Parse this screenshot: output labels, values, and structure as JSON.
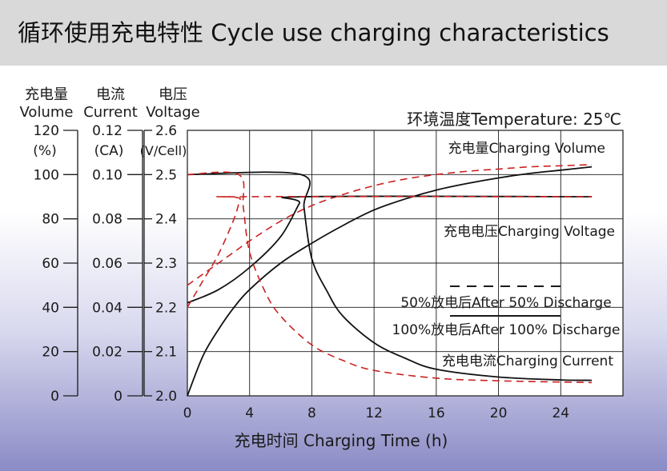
{
  "title": "循环使用充电特性 Cycle use charging characteristics",
  "chart_data": {
    "type": "line",
    "title": "循环使用充电特性 Cycle use charging characteristics",
    "temperature_label": "环境温度Temperature: 25℃",
    "xlabel": "充电时间 Charging Time (h)",
    "xlim": [
      0,
      28
    ],
    "x_ticks": [
      0,
      4,
      8,
      12,
      16,
      20,
      24
    ],
    "y_axes": [
      {
        "label_cn": "充电量",
        "label_en": "Volume",
        "unit": "(%)",
        "ticks": [
          "0",
          "20",
          "40",
          "60",
          "80",
          "100",
          "120"
        ]
      },
      {
        "label_cn": "电流",
        "label_en": "Current",
        "unit": "(CA)",
        "ticks": [
          "0",
          "0.02",
          "0.04",
          "0.06",
          "0.08",
          "0.10",
          "0.12"
        ]
      },
      {
        "label_cn": "电压",
        "label_en": "Voltage",
        "unit": "(V/Cell)",
        "ticks": [
          "2.0",
          "2.1",
          "2.2",
          "2.3",
          "2.4",
          "2.5",
          "2.6"
        ]
      }
    ],
    "ylim_volume": [
      0,
      120
    ],
    "curve_labels": {
      "volume": "充电量Charging Volume",
      "voltage": "充电电压Charging Voltage",
      "current": "充电电流Charging Current"
    },
    "legend": [
      {
        "label": "50%放电后After 50% Discharge",
        "style": "dashed",
        "color": "#cc2222"
      },
      {
        "label": "100%放电后After 100% Discharge",
        "style": "solid",
        "color": "#111111"
      }
    ],
    "series": [
      {
        "name": "Charging Volume (100% discharge)",
        "style": "solid",
        "points": [
          [
            0,
            0
          ],
          [
            1,
            18
          ],
          [
            2,
            30
          ],
          [
            3,
            40
          ],
          [
            4,
            48
          ],
          [
            6,
            60
          ],
          [
            8,
            69
          ],
          [
            10,
            77
          ],
          [
            12,
            84
          ],
          [
            14,
            89
          ],
          [
            16,
            93
          ],
          [
            18,
            96
          ],
          [
            20,
            98.5
          ],
          [
            22,
            100.5
          ],
          [
            24,
            102
          ],
          [
            26,
            103.5
          ]
        ]
      },
      {
        "name": "Charging Volume (50% discharge)",
        "style": "dashed",
        "points": [
          [
            0,
            50
          ],
          [
            1,
            55
          ],
          [
            2,
            60
          ],
          [
            3,
            65
          ],
          [
            4,
            70
          ],
          [
            6,
            79
          ],
          [
            8,
            86
          ],
          [
            10,
            91
          ],
          [
            12,
            95
          ],
          [
            14,
            98
          ],
          [
            16,
            100
          ],
          [
            18,
            101.5
          ],
          [
            20,
            102.5
          ],
          [
            22,
            103.5
          ],
          [
            24,
            104
          ],
          [
            26,
            104.5
          ]
        ]
      },
      {
        "name": "Charging Voltage (100% discharge)",
        "style": "solid",
        "points": [
          [
            0,
            2.21
          ],
          [
            2,
            2.24
          ],
          [
            4,
            2.29
          ],
          [
            6,
            2.36
          ],
          [
            7.2,
            2.435
          ],
          [
            7.5,
            2.45
          ],
          [
            26,
            2.45
          ]
        ]
      },
      {
        "name": "Charging Voltage (50% discharge)",
        "style": "dashed",
        "points": [
          [
            0,
            2.2
          ],
          [
            1,
            2.26
          ],
          [
            2,
            2.32
          ],
          [
            3,
            2.4
          ],
          [
            3.4,
            2.445
          ],
          [
            3.6,
            2.45
          ],
          [
            26,
            2.45
          ]
        ]
      },
      {
        "name": "Charging Current (100% discharge)",
        "style": "solid",
        "points": [
          [
            0,
            0.1
          ],
          [
            7.3,
            0.1
          ],
          [
            7.5,
            0.085
          ],
          [
            8,
            0.062
          ],
          [
            9,
            0.047
          ],
          [
            10,
            0.036
          ],
          [
            12,
            0.024
          ],
          [
            14,
            0.017
          ],
          [
            16,
            0.012
          ],
          [
            20,
            0.0085
          ],
          [
            24,
            0.0072
          ],
          [
            26,
            0.007
          ]
        ]
      },
      {
        "name": "Charging Current (50% discharge)",
        "style": "dashed",
        "points": [
          [
            0,
            0.1
          ],
          [
            3.3,
            0.1
          ],
          [
            3.6,
            0.085
          ],
          [
            4,
            0.065
          ],
          [
            5,
            0.047
          ],
          [
            6,
            0.036
          ],
          [
            8,
            0.023
          ],
          [
            10,
            0.016
          ],
          [
            12,
            0.0115
          ],
          [
            16,
            0.008
          ],
          [
            20,
            0.0068
          ],
          [
            26,
            0.006
          ]
        ]
      }
    ]
  }
}
